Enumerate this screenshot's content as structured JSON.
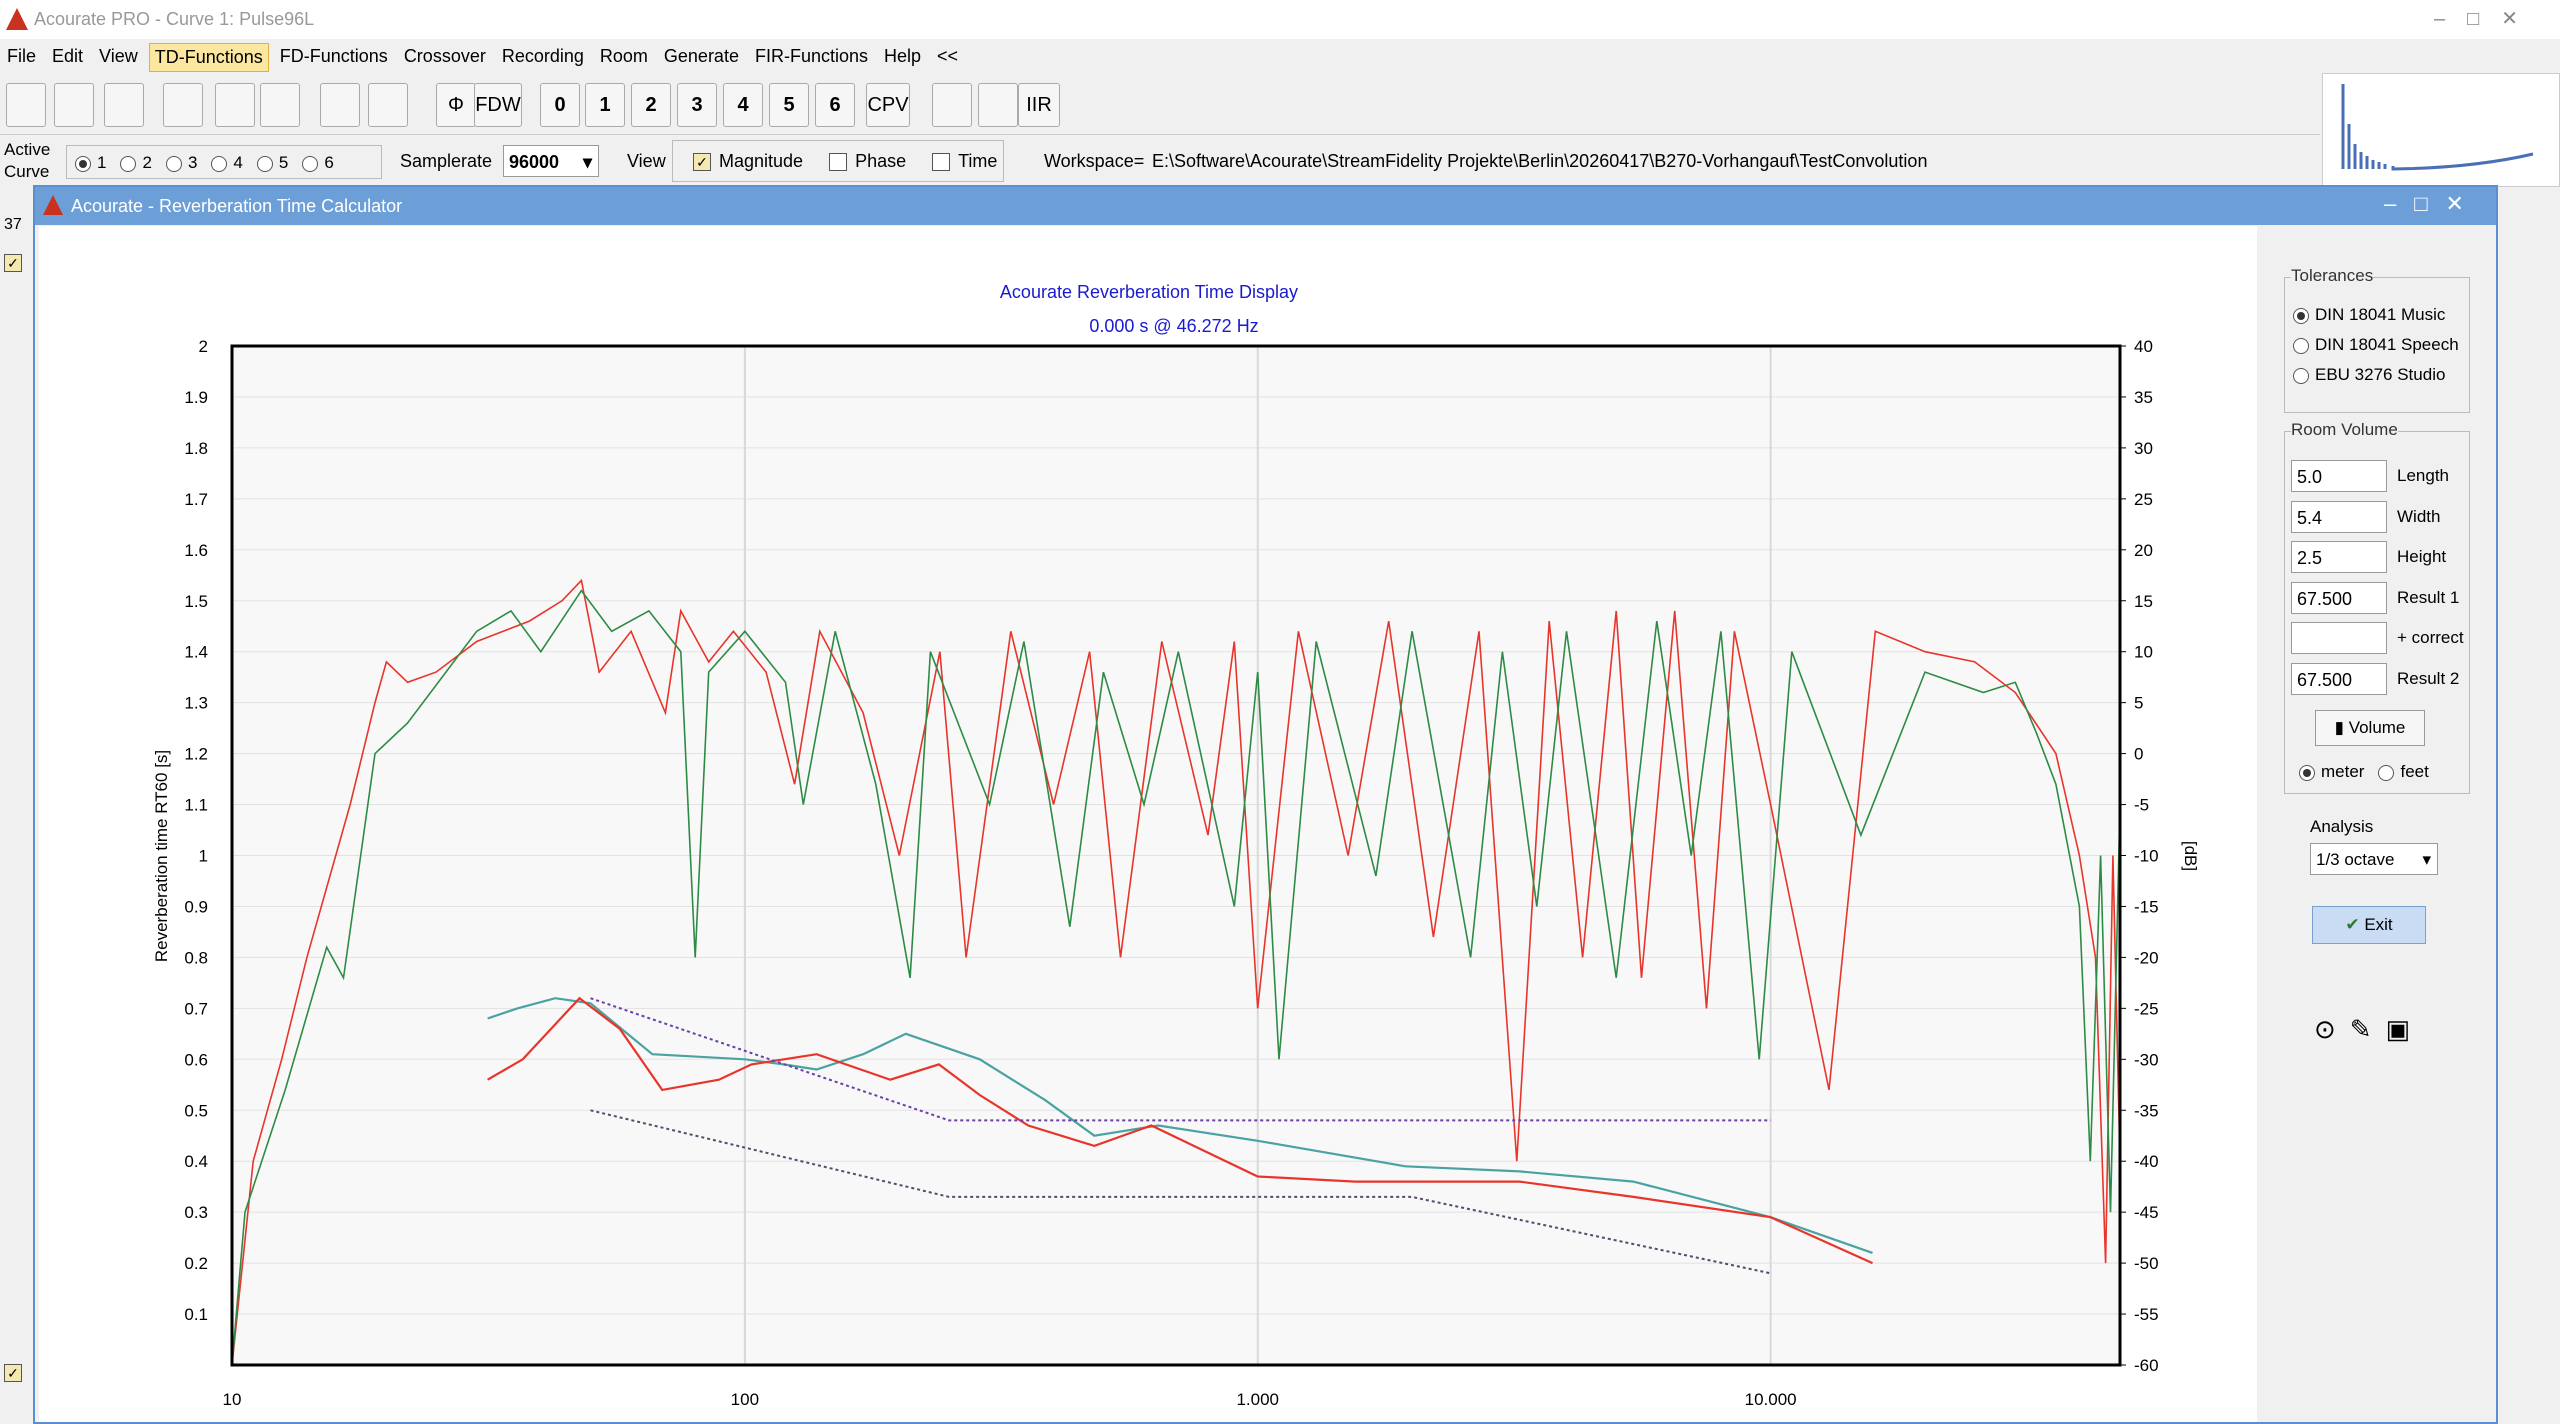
{
  "app": {
    "title": "Acourate PRO - Curve 1: Pulse96L",
    "menu": [
      "File",
      "Edit",
      "View",
      "TD-Functions",
      "FD-Functions",
      "Crossover",
      "Recording",
      "Room",
      "Generate",
      "FIR-Functions",
      "Help",
      "<<"
    ],
    "toolbar": [
      "Φ",
      "FDW",
      "0",
      "1",
      "2",
      "3",
      "4",
      "5",
      "6",
      "CPV",
      "IIR"
    ],
    "active_curve": "Active Curve",
    "curves": [
      "1",
      "2",
      "3",
      "4",
      "5",
      "6"
    ],
    "samplerate_label": "Samplerate",
    "samplerate": "96000",
    "view_label": "View",
    "view_options": [
      "Magnitude",
      "Phase",
      "Time"
    ],
    "workspace_label": "Workspace=",
    "workspace": "E:\\Software\\Acourate\\StreamFidelity Projekte\\Berlin\\20260417\\B270-Vorhangauf\\TestConvolution",
    "side_value": "37"
  },
  "dialog": {
    "title": "Acourate - Reverberation Time Calculator",
    "tolerances_label": "Tolerances",
    "tolerances": [
      "DIN 18041 Music",
      "DIN 18041 Speech",
      "EBU 3276 Studio"
    ],
    "room_volume_label": "Room Volume",
    "fields": [
      {
        "value": "5.0",
        "label": "Length"
      },
      {
        "value": "5.4",
        "label": "Width"
      },
      {
        "value": "2.5",
        "label": "Height"
      },
      {
        "value": "67.500",
        "label": "Result 1"
      },
      {
        "value": "",
        "label": "+ correct"
      },
      {
        "value": "67.500",
        "label": "Result 2"
      }
    ],
    "volume_button": "Volume",
    "units": [
      "meter",
      "feet"
    ],
    "analysis_label": "Analysis",
    "analysis": "1/3 octave",
    "exit_button": "Exit"
  },
  "chart_data": {
    "type": "line",
    "title": "Acourate Reverberation Time Display",
    "subtitle": "0.000 s @ 46.272 Hz",
    "y_label": "Reverberation time RT60 [s]",
    "y2_label": "[dB]",
    "xscale": "log",
    "xlim": [
      10,
      48000
    ],
    "xticks": [
      10,
      100,
      {
        "value": 1000,
        "label": "1.000"
      },
      {
        "value": 10000,
        "label": "10.000"
      }
    ],
    "ylim": [
      0,
      2
    ],
    "yticks": [
      0.1,
      0.2,
      0.3,
      0.4,
      0.5,
      0.6,
      0.7,
      0.8,
      0.9,
      1,
      1.1,
      1.2,
      1.3,
      1.4,
      1.5,
      1.6,
      1.7,
      1.8,
      1.9,
      2
    ],
    "y2lim": [
      -60,
      40
    ],
    "y2ticks": [
      -60,
      -55,
      -50,
      -45,
      -40,
      -35,
      -30,
      -25,
      -20,
      -15,
      -10,
      -5,
      0,
      5,
      10,
      15,
      20,
      25,
      30,
      35,
      40
    ],
    "grid": true,
    "series": [
      {
        "color": "#e8352b",
        "axis": "y2",
        "x": [
          10,
          11,
          12.5,
          14,
          17,
          19,
          20,
          22,
          25,
          30,
          38,
          44,
          48,
          52,
          60,
          70,
          75,
          85,
          95,
          110,
          125,
          140,
          170,
          200,
          240,
          270,
          330,
          400,
          470,
          540,
          650,
          800,
          900,
          1000,
          1200,
          1500,
          1800,
          2200,
          2700,
          3200,
          3700,
          4300,
          5000,
          5600,
          6500,
          7500,
          8500,
          10000,
          13000,
          16000,
          20000,
          25000,
          30000,
          36000,
          40000,
          43000,
          45000,
          46500,
          48000
        ],
        "values": [
          -60,
          -40,
          -30,
          -20,
          -5,
          5,
          9,
          7,
          8,
          11,
          13,
          15,
          17,
          8,
          12,
          4,
          14,
          9,
          12,
          8,
          -3,
          12,
          4,
          -10,
          10,
          -20,
          12,
          -5,
          10,
          -20,
          11,
          -8,
          11,
          -25,
          12,
          -10,
          13,
          -18,
          12,
          -40,
          13,
          -20,
          14,
          -22,
          14,
          -25,
          12,
          -5,
          -33,
          12,
          10,
          9,
          6,
          0,
          -10,
          -20,
          -50,
          -10,
          -40
        ]
      },
      {
        "color": "#2e8b46",
        "axis": "y2",
        "x": [
          10,
          10.6,
          12.7,
          15.3,
          16.5,
          19,
          22,
          30,
          35,
          40,
          48,
          55,
          65,
          75,
          80,
          85,
          100,
          120,
          130,
          150,
          180,
          210,
          230,
          300,
          350,
          430,
          500,
          600,
          700,
          900,
          1000,
          1100,
          1300,
          1700,
          2000,
          2600,
          3000,
          3500,
          4000,
          5000,
          6000,
          7000,
          8000,
          9500,
          11000,
          15000,
          20000,
          26000,
          30000,
          33000,
          36000,
          40000,
          42000,
          44000,
          46000,
          48000
        ],
        "values": [
          -60,
          -45,
          -33,
          -19,
          -22,
          0,
          3,
          12,
          14,
          10,
          16,
          12,
          14,
          10,
          -20,
          8,
          12,
          7,
          -5,
          12,
          -3,
          -22,
          10,
          -5,
          11,
          -17,
          8,
          -5,
          10,
          -15,
          8,
          -30,
          11,
          -12,
          12,
          -20,
          10,
          -15,
          12,
          -22,
          13,
          -10,
          12,
          -30,
          10,
          -8,
          8,
          6,
          7,
          2,
          -3,
          -15,
          -40,
          -10,
          -45,
          -5
        ]
      },
      {
        "color": "#4aa3a0",
        "x": [
          31.5,
          36,
          42.7,
          50,
          66,
          100,
          119,
          138,
          170,
          206,
          287,
          385,
          480,
          640,
          1000,
          1940,
          3240,
          5400,
          10000,
          15800
        ],
        "values": [
          0.68,
          0.7,
          0.72,
          0.71,
          0.61,
          0.6,
          0.59,
          0.58,
          0.61,
          0.65,
          0.6,
          0.52,
          0.45,
          0.47,
          0.44,
          0.39,
          0.38,
          0.36,
          0.29,
          0.22
        ]
      },
      {
        "color": "#e8352b",
        "x": [
          31.5,
          36.9,
          47.6,
          57,
          69,
          89,
          103,
          138,
          192,
          239,
          287,
          357,
          480,
          620,
          1000,
          1550,
          3240,
          5400,
          10000,
          15800
        ],
        "values": [
          0.56,
          0.6,
          0.72,
          0.66,
          0.54,
          0.56,
          0.59,
          0.61,
          0.56,
          0.59,
          0.53,
          0.47,
          0.43,
          0.47,
          0.37,
          0.36,
          0.36,
          0.33,
          0.29,
          0.2
        ]
      },
      {
        "color": "#6a3fa8",
        "dashed": true,
        "x": [
          50,
          250,
          10000
        ],
        "values": [
          0.72,
          0.48,
          0.48
        ]
      },
      {
        "color": "#5a4a6a",
        "dashed": true,
        "x": [
          50,
          250,
          2000,
          10000
        ],
        "values": [
          0.5,
          0.33,
          0.33,
          0.18
        ]
      }
    ]
  }
}
